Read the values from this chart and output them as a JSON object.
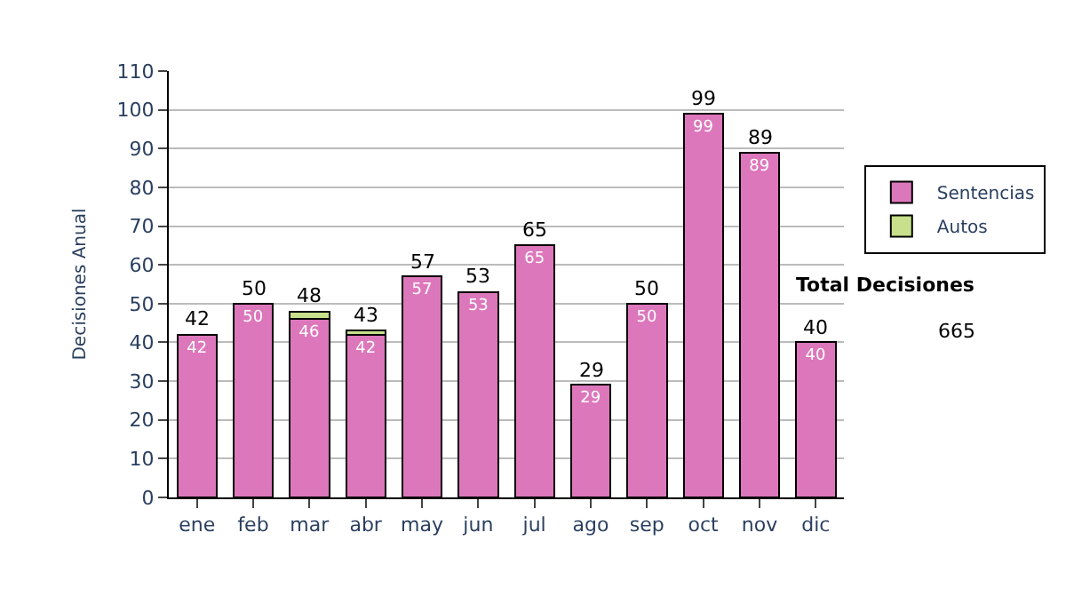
{
  "chart_data": {
    "type": "bar",
    "stacked": true,
    "ylabel": "Decisiones Anual",
    "categories": [
      "ene",
      "feb",
      "mar",
      "abr",
      "may",
      "jun",
      "jul",
      "ago",
      "sep",
      "oct",
      "nov",
      "dic"
    ],
    "series": [
      {
        "name": "Sentencias",
        "color": "#dd77bb",
        "values": [
          42,
          50,
          46,
          42,
          57,
          53,
          65,
          29,
          50,
          99,
          89,
          40
        ],
        "value_labels": [
          "42",
          "50",
          "46",
          "42",
          "57",
          "53",
          "65",
          "29",
          "50",
          "99",
          "89",
          "40"
        ]
      },
      {
        "name": "Autos",
        "color": "#c8e08c",
        "values": [
          null,
          null,
          2,
          1,
          null,
          null,
          null,
          null,
          null,
          null,
          null,
          null
        ]
      }
    ],
    "totals": [
      "42",
      "50",
      "48",
      "43",
      "57",
      "53",
      "65",
      "29",
      "50",
      "99",
      "89",
      "40"
    ],
    "ylim": [
      0,
      110
    ],
    "yticks": [
      0,
      10,
      20,
      30,
      40,
      50,
      60,
      70,
      80,
      90,
      100,
      110
    ],
    "grid": "y",
    "legend": "right",
    "annotations": [
      "Total Decisiones",
      "665"
    ]
  }
}
